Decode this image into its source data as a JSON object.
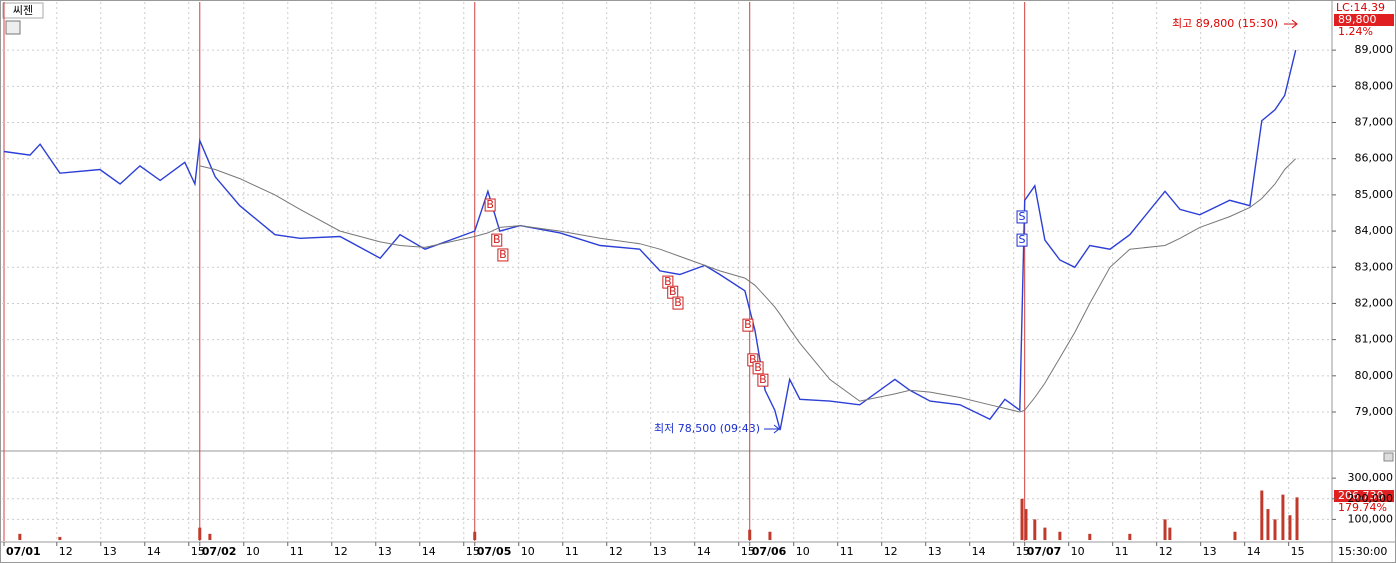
{
  "chart_data": [
    {
      "type": "line",
      "title": "씨젠",
      "legend_value": "LC:14.39",
      "last_label": "89,800",
      "change_label": "1.24%",
      "time_label": "15:30:00",
      "annotations": [
        "최고 89,800 (15:30)",
        "최저 78,500 (09:43)"
      ],
      "xlim": [
        0,
        30.14
      ],
      "xticks": [
        {
          "value": 0,
          "label": "07/01"
        },
        {
          "value": 1.2,
          "label": "12"
        },
        {
          "value": 2.2,
          "label": "13"
        },
        {
          "value": 3.2,
          "label": "14"
        },
        {
          "value": 4.2,
          "label": "15"
        },
        {
          "value": 4.45,
          "label": "07/02"
        },
        {
          "value": 5.45,
          "label": "10"
        },
        {
          "value": 6.45,
          "label": "11"
        },
        {
          "value": 7.45,
          "label": "12"
        },
        {
          "value": 8.45,
          "label": "13"
        },
        {
          "value": 9.45,
          "label": "14"
        },
        {
          "value": 10.45,
          "label": "15"
        },
        {
          "value": 10.7,
          "label": "07/05"
        },
        {
          "value": 11.7,
          "label": "10"
        },
        {
          "value": 12.7,
          "label": "11"
        },
        {
          "value": 13.7,
          "label": "12"
        },
        {
          "value": 14.7,
          "label": "13"
        },
        {
          "value": 15.7,
          "label": "14"
        },
        {
          "value": 16.7,
          "label": "15"
        },
        {
          "value": 16.95,
          "label": "07/06"
        },
        {
          "value": 17.95,
          "label": "10"
        },
        {
          "value": 18.95,
          "label": "11"
        },
        {
          "value": 19.95,
          "label": "12"
        },
        {
          "value": 20.95,
          "label": "13"
        },
        {
          "value": 21.95,
          "label": "14"
        },
        {
          "value": 22.95,
          "label": "15"
        },
        {
          "value": 23.2,
          "label": "07/07"
        },
        {
          "value": 24.2,
          "label": "10"
        },
        {
          "value": 25.2,
          "label": "11"
        },
        {
          "value": 26.2,
          "label": "12"
        },
        {
          "value": 27.2,
          "label": "13"
        },
        {
          "value": 28.2,
          "label": "14"
        },
        {
          "value": 29.2,
          "label": "15"
        }
      ],
      "ylim": [
        77950,
        90330
      ],
      "yticks": [
        {
          "value": 79000,
          "label": "79,000"
        },
        {
          "value": 80000,
          "label": "80,000"
        },
        {
          "value": 81000,
          "label": "81,000"
        },
        {
          "value": 82000,
          "label": "82,000"
        },
        {
          "value": 83000,
          "label": "83,000"
        },
        {
          "value": 84000,
          "label": "84,000"
        },
        {
          "value": 85000,
          "label": "85,000"
        },
        {
          "value": 86000,
          "label": "86,000"
        },
        {
          "value": 87000,
          "label": "87,000"
        },
        {
          "value": 88000,
          "label": "88,000"
        },
        {
          "value": 89000,
          "label": "89,000"
        }
      ],
      "grid": true,
      "x": [
        0,
        0.59,
        0.82,
        1.27,
        2.18,
        2.64,
        3.09,
        3.55,
        4.11,
        4.34,
        4.45,
        4.8,
        5.36,
        6.16,
        6.73,
        7.64,
        8.55,
        9,
        9.57,
        10.14,
        10.7,
        11,
        11.27,
        11.73,
        12.64,
        13.55,
        14.45,
        14.91,
        15.36,
        15.93,
        16.27,
        16.84,
        17.07,
        17.3,
        17.52,
        17.64,
        17.86,
        18.09,
        18.77,
        19.45,
        20.25,
        20.59,
        21.05,
        21.73,
        22.41,
        22.75,
        23.09,
        23.2,
        23.43,
        23.66,
        24,
        24.34,
        24.68,
        25.14,
        25.59,
        26.39,
        26.73,
        27.18,
        27.86,
        28.32,
        28.59,
        28.89,
        29.11,
        29.36
      ],
      "series": [
        {
          "color": "#2c3fd6",
          "values": [
            86200,
            86100,
            86400,
            85600,
            85700,
            85300,
            85800,
            85400,
            85900,
            85300,
            86500,
            85500,
            84700,
            83900,
            83800,
            83850,
            83250,
            83900,
            83500,
            83750,
            84000,
            85100,
            84000,
            84150,
            83950,
            83600,
            83500,
            82900,
            82800,
            83050,
            82800,
            82350,
            81250,
            79600,
            79050,
            78500,
            79900,
            79350,
            79300,
            79200,
            79900,
            79600,
            79300,
            79200,
            78800,
            79350,
            79050,
            84850,
            85250,
            83750,
            83200,
            83000,
            83600,
            83500,
            83900,
            85100,
            84600,
            84450,
            84850,
            84700,
            87050,
            87350,
            87750,
            89000
          ]
        },
        {
          "color": "#777777",
          "values": [
            null,
            null,
            null,
            null,
            null,
            null,
            null,
            null,
            null,
            null,
            85800,
            85700,
            85450,
            85000,
            84600,
            84000,
            83700,
            83600,
            83550,
            83700,
            83850,
            83950,
            84100,
            84150,
            84000,
            83800,
            83650,
            83500,
            83300,
            83050,
            82900,
            82700,
            82500,
            82200,
            81900,
            81700,
            81300,
            80900,
            79900,
            79300,
            79500,
            79600,
            79550,
            79400,
            79200,
            79100,
            79000,
            79050,
            79400,
            79800,
            80500,
            81200,
            82000,
            83000,
            83500,
            83600,
            83800,
            84100,
            84400,
            84650,
            84900,
            85300,
            85700,
            86000
          ]
        }
      ],
      "signals": {
        "x": [
          11.05,
          11.2,
          11.34,
          15.09,
          15.2,
          15.32,
          16.91,
          17.02,
          17.14,
          17.25,
          23.14,
          23.14
        ],
        "values": [
          84720,
          83750,
          83340,
          82590,
          82310,
          82010,
          81400,
          80440,
          80220,
          79880,
          84390,
          83750
        ],
        "labels": [
          "B",
          "B",
          "B",
          "B",
          "B",
          "B",
          "B",
          "B",
          "B",
          "B",
          "S",
          "S"
        ]
      }
    },
    {
      "type": "bar",
      "last_label": "206,730",
      "change_label": "179.74%",
      "color": "#c0392b",
      "xlim": [
        0,
        30.14
      ],
      "ylim": [
        0,
        426800
      ],
      "yticks": [
        {
          "value": 100000,
          "label": "100,000"
        },
        {
          "value": 200000,
          "label": "200,000"
        },
        {
          "value": 300000,
          "label": "300,000"
        }
      ],
      "x": [
        0.36,
        1.27,
        4.45,
        4.68,
        10.7,
        16.95,
        17.41,
        23.14,
        23.23,
        23.43,
        23.66,
        24,
        24.68,
        25.59,
        26.39,
        26.5,
        27.98,
        28.59,
        28.73,
        28.89,
        29.07,
        29.23,
        29.39
      ],
      "values": [
        30000,
        15000,
        60000,
        30000,
        40000,
        50000,
        40000,
        200000,
        150000,
        100000,
        60000,
        40000,
        30000,
        30000,
        100000,
        60000,
        40000,
        240000,
        150000,
        100000,
        220000,
        120000,
        206730
      ]
    }
  ]
}
